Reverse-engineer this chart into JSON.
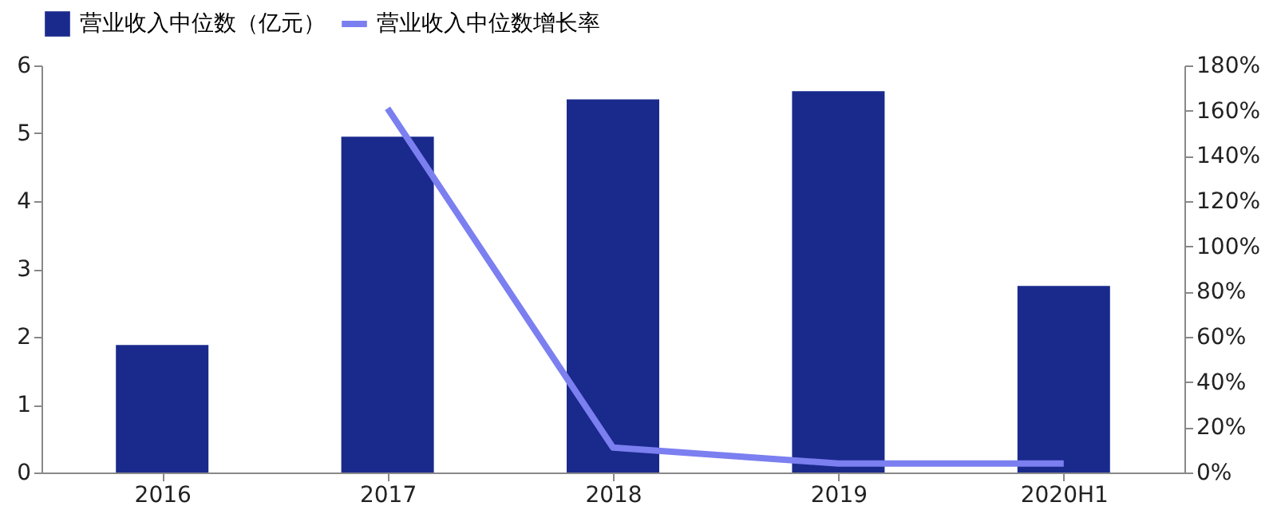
{
  "chart_data": {
    "type": "bar",
    "categories": [
      "2016",
      "2017",
      "2018",
      "2019",
      "2020H1"
    ],
    "series": [
      {
        "name": "营业收入中位数（亿元）",
        "color": "#1a2a8c",
        "values": [
          1.88,
          4.95,
          5.5,
          5.62,
          2.75
        ]
      },
      {
        "name": "营业收入中位数增长率",
        "type": "line",
        "axis": "y2",
        "color": "#7b7ff0",
        "values": [
          null,
          161,
          11,
          4,
          4
        ]
      }
    ],
    "ylim": [
      0,
      6
    ],
    "yticks": [
      0,
      1,
      2,
      3,
      4,
      5,
      6
    ],
    "y2lim": [
      0,
      180
    ],
    "y2ticks": [
      {
        "value": 0,
        "label": "0%"
      },
      {
        "value": 20,
        "label": "20%"
      },
      {
        "value": 40,
        "label": "40%"
      },
      {
        "value": 60,
        "label": "60%"
      },
      {
        "value": 80,
        "label": "80%"
      },
      {
        "value": 100,
        "label": "100%"
      },
      {
        "value": 120,
        "label": "120%"
      },
      {
        "value": 140,
        "label": "140%"
      },
      {
        "value": 160,
        "label": "160%"
      },
      {
        "value": 180,
        "label": "180%"
      }
    ],
    "legend": "top",
    "grid": false,
    "marker": "none",
    "line_style": "solid"
  }
}
